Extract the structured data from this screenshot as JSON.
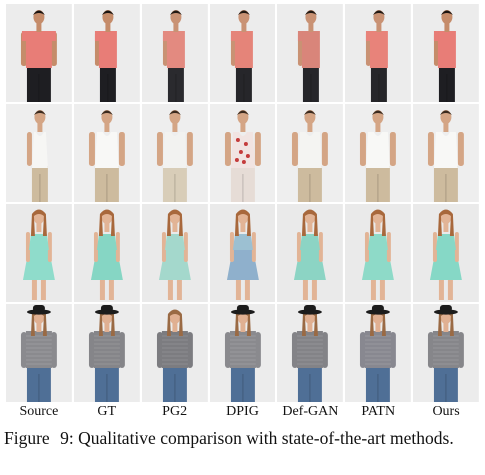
{
  "figure": {
    "columns": [
      "Source",
      "GT",
      "PG2",
      "DPIG",
      "Def-GAN",
      "PATN",
      "Ours"
    ],
    "rows": [
      {
        "row_name": "man-tshirt",
        "bg": "#ececec",
        "cells": [
          {
            "skin": "#c58c6a",
            "hair": "#1a1410",
            "top": "#e87d77",
            "bottom": "#1e1e22",
            "pose": "front",
            "sleeve": "short"
          },
          {
            "skin": "#c58c6a",
            "hair": "#1a1410",
            "top": "#e87d77",
            "bottom": "#1e1e22",
            "pose": "side",
            "sleeve": "short"
          },
          {
            "skin": "#c99274",
            "hair": "#221a14",
            "top": "#e38a80",
            "bottom": "#2a2a2e",
            "pose": "side",
            "sleeve": "short"
          },
          {
            "skin": "#c99274",
            "hair": "#221a14",
            "top": "#e58479",
            "bottom": "#26262a",
            "pose": "side",
            "sleeve": "short"
          },
          {
            "skin": "#c99274",
            "hair": "#221a14",
            "top": "#d9857a",
            "bottom": "#26262a",
            "pose": "side",
            "sleeve": "short"
          },
          {
            "skin": "#c99274",
            "hair": "#221a14",
            "top": "#e8837a",
            "bottom": "#26262a",
            "pose": "side",
            "sleeve": "short"
          },
          {
            "skin": "#c58c6a",
            "hair": "#1a1410",
            "top": "#e87d77",
            "bottom": "#1e1e22",
            "pose": "side",
            "sleeve": "short"
          }
        ]
      },
      {
        "row_name": "man-tank",
        "bg": "#eeeeee",
        "cells": [
          {
            "skin": "#d4a585",
            "hair": "#3a2a1e",
            "top": "#f6f6f4",
            "bottom": "#cdbb9e",
            "pose": "side",
            "sleeve": "tank"
          },
          {
            "skin": "#d4a585",
            "hair": "#3a2a1e",
            "top": "#f8f8f6",
            "bottom": "#cdbb9e",
            "pose": "front",
            "sleeve": "tank"
          },
          {
            "skin": "#d4a585",
            "hair": "#3a2a1e",
            "top": "#f2f2f0",
            "bottom": "#d8cdb8",
            "pose": "front",
            "sleeve": "tank"
          },
          {
            "skin": "#d4a585",
            "hair": "#3a2a1e",
            "top": "#f1e4e2",
            "bottom": "#e6dcd6",
            "pose": "front",
            "sleeve": "tank",
            "pattern": "#c43c3c"
          },
          {
            "skin": "#d4a585",
            "hair": "#3a2a1e",
            "top": "#f4f4f2",
            "bottom": "#cdbb9e",
            "pose": "front",
            "sleeve": "tank"
          },
          {
            "skin": "#d4a585",
            "hair": "#3a2a1e",
            "top": "#f8f8f6",
            "bottom": "#cdbb9e",
            "pose": "front",
            "sleeve": "tank"
          },
          {
            "skin": "#d4a585",
            "hair": "#3a2a1e",
            "top": "#f8f8f6",
            "bottom": "#cdbb9e",
            "pose": "front",
            "sleeve": "tank"
          }
        ]
      },
      {
        "row_name": "woman-dress",
        "bg": "#eaeaea",
        "cells": [
          {
            "skin": "#e2b496",
            "hair": "#a8683c",
            "top": "#8fdccb",
            "bottom": "#8fdccb",
            "pose": "front",
            "sleeve": "dress"
          },
          {
            "skin": "#e2b496",
            "hair": "#a8683c",
            "top": "#86d6c4",
            "bottom": "#86d6c4",
            "pose": "front",
            "sleeve": "dress"
          },
          {
            "skin": "#e2b496",
            "hair": "#a8683c",
            "top": "#a4d8cc",
            "bottom": "#a4d8cc",
            "pose": "front",
            "sleeve": "dress"
          },
          {
            "skin": "#e2b496",
            "hair": "#a8683c",
            "top": "#9cc0d2",
            "bottom": "#8fb0cc",
            "pose": "front",
            "sleeve": "dress"
          },
          {
            "skin": "#e2b496",
            "hair": "#a8683c",
            "top": "#8cd4c4",
            "bottom": "#8cd4c4",
            "pose": "front",
            "sleeve": "dress"
          },
          {
            "skin": "#e2b496",
            "hair": "#a8683c",
            "top": "#8edac8",
            "bottom": "#8edac8",
            "pose": "front",
            "sleeve": "dress"
          },
          {
            "skin": "#e2b496",
            "hair": "#a8683c",
            "top": "#86d8c6",
            "bottom": "#86d8c6",
            "pose": "front",
            "sleeve": "dress"
          }
        ]
      },
      {
        "row_name": "woman-sweater-hat",
        "bg": "#ececec",
        "cells": [
          {
            "skin": "#e0b092",
            "hair": "#9a6a44",
            "top": "#8a8a8e",
            "bottom": "#4f6f96",
            "pose": "front",
            "sleeve": "long",
            "hat": "#1c1c1c"
          },
          {
            "skin": "#e0b092",
            "hair": "#9a6a44",
            "top": "#858589",
            "bottom": "#4f6f96",
            "pose": "front",
            "sleeve": "long",
            "hat": "#1c1c1c"
          },
          {
            "skin": "#e0b092",
            "hair": "#9a6a44",
            "top": "#7c7c80",
            "bottom": "#4f6f96",
            "pose": "front",
            "sleeve": "long"
          },
          {
            "skin": "#e0b092",
            "hair": "#9a6a44",
            "top": "#8a8a8e",
            "bottom": "#4f6f96",
            "pose": "front",
            "sleeve": "long",
            "hat": "#1c1c1c"
          },
          {
            "skin": "#e0b092",
            "hair": "#9a6a44",
            "top": "#838387",
            "bottom": "#4f6f96",
            "pose": "front",
            "sleeve": "long",
            "hat": "#1c1c1c"
          },
          {
            "skin": "#e0b092",
            "hair": "#9a6a44",
            "top": "#888890",
            "bottom": "#4f6f96",
            "pose": "front",
            "sleeve": "long",
            "hat": "#1c1c1c"
          },
          {
            "skin": "#e0b092",
            "hair": "#9a6a44",
            "top": "#86868a",
            "bottom": "#4f6f96",
            "pose": "front",
            "sleeve": "long",
            "hat": "#1c1c1c"
          }
        ]
      }
    ]
  },
  "caption": {
    "label": "Figure 9:",
    "text": "Qualitative comparison with state-of-the-art methods."
  }
}
